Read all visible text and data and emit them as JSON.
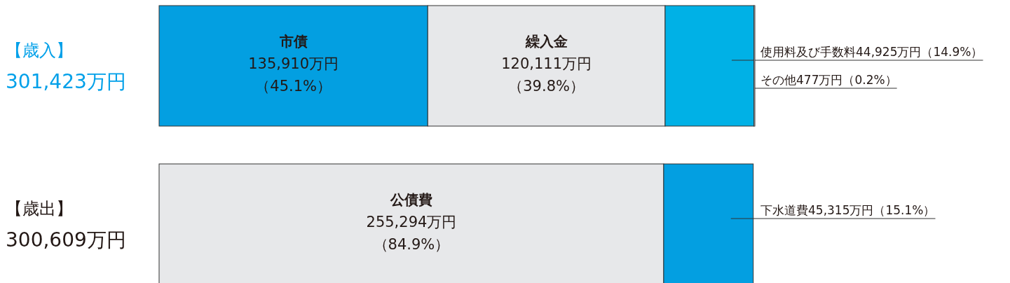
{
  "chart_data": {
    "type": "bar",
    "orientation": "horizontal",
    "stacked": true,
    "categories": [
      "【歳入】\n301,423万円",
      "【歳出】\n300,609万円"
    ],
    "series": [
      {
        "name": "市債",
        "color": "#039fe1",
        "values": [
          135910,
          null
        ],
        "value_labels": [
          "135,910万円（45.1%）",
          null
        ]
      },
      {
        "name": "繰入金",
        "color": "#e7e8ea",
        "values": [
          120111,
          null
        ],
        "value_labels": [
          "120,111万円（39.8%）",
          null
        ]
      },
      {
        "name": "使用料及び手数料",
        "color": "#00b1e6",
        "values": [
          44925,
          null
        ],
        "value_labels": [
          "44,925万円（14.9%）",
          null
        ]
      },
      {
        "name": "その他",
        "color": "#e7e8ea",
        "values": [
          477,
          null
        ],
        "value_labels": [
          "477万円（0.2%）",
          null
        ]
      },
      {
        "name": "公債費",
        "color": "#e7e8ea",
        "values": [
          null,
          255294
        ],
        "value_labels": [
          null,
          "255,294万円（84.9%）"
        ]
      },
      {
        "name": "下水道費",
        "color": "#039fe1",
        "values": [
          null,
          45315
        ],
        "value_labels": [
          null,
          "45,315万円（15.1%）"
        ]
      }
    ]
  }
}
